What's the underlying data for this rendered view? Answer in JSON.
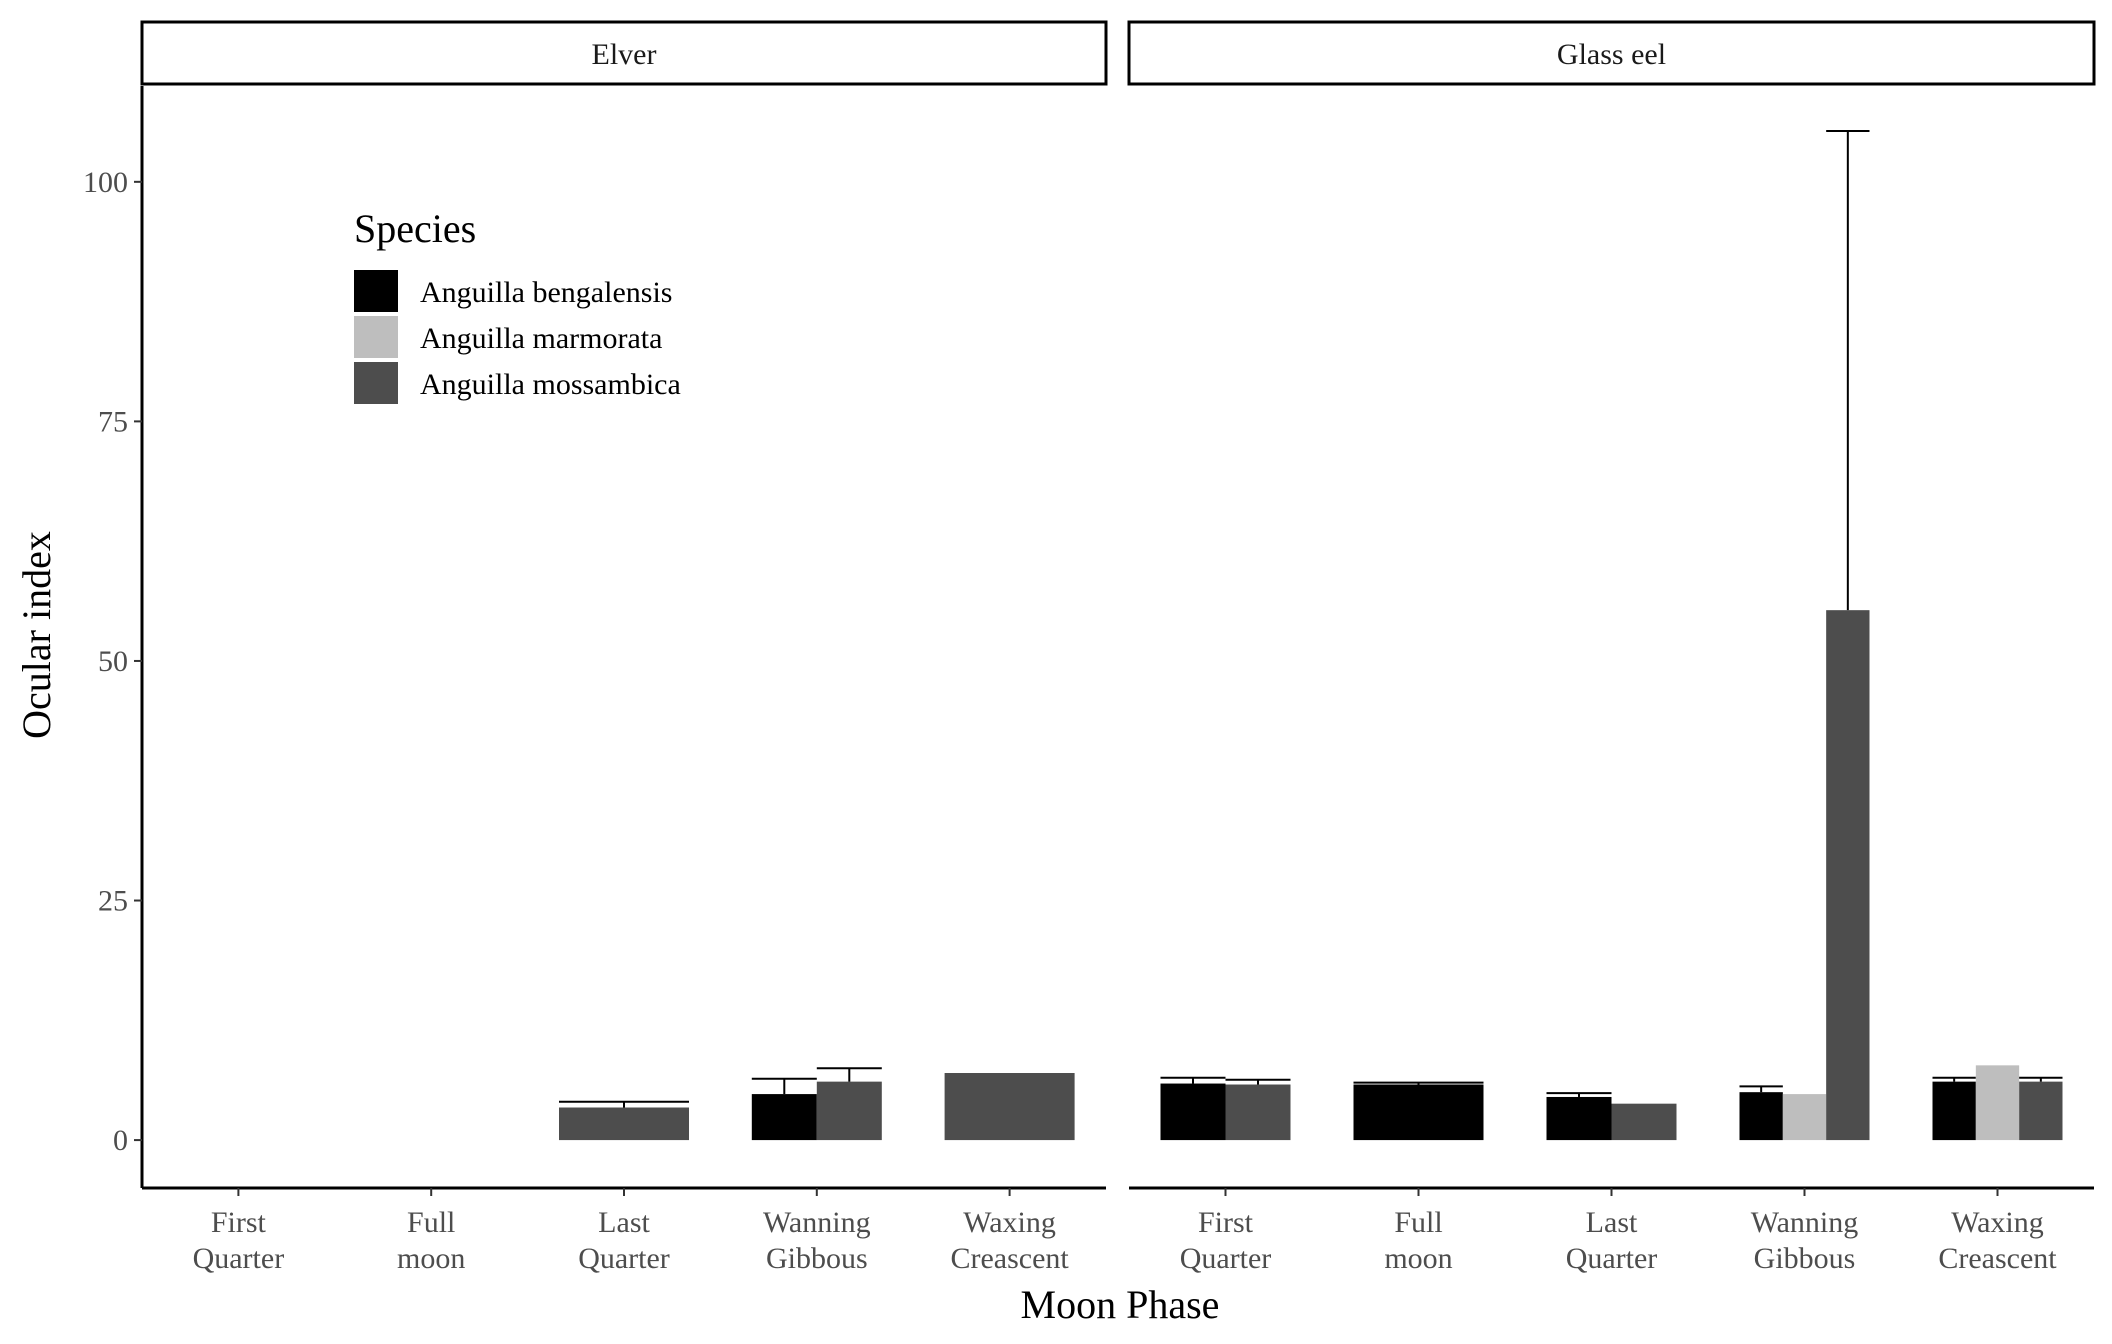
{
  "chart_data": {
    "type": "bar",
    "title": "",
    "xlabel": "Moon Phase",
    "ylabel": "Ocular index",
    "ylim": [
      -5,
      110
    ],
    "yticks": [
      0,
      25,
      50,
      75,
      100
    ],
    "categories": [
      [
        "First",
        "Quarter"
      ],
      [
        "Full",
        "moon"
      ],
      [
        "Last",
        "Quarter"
      ],
      [
        "Wanning",
        "Gibbous"
      ],
      [
        "Waxing",
        "Creascent"
      ]
    ],
    "legend": {
      "title": "Species",
      "placement": "top-left inside",
      "entries": [
        {
          "name": "Anguilla bengalensis",
          "color": "#000000"
        },
        {
          "name": "Anguilla marmorata",
          "color": "#bebebe"
        },
        {
          "name": "Anguilla mossambica",
          "color": "#4d4d4d"
        }
      ]
    },
    "facets": [
      {
        "label": "Elver",
        "groups": [
          {
            "category": 0,
            "bars": []
          },
          {
            "category": 1,
            "bars": []
          },
          {
            "category": 2,
            "bars": [
              {
                "species": 2,
                "value": 3.4,
                "err": 4.0
              }
            ]
          },
          {
            "category": 3,
            "bars": [
              {
                "species": 0,
                "value": 4.8,
                "err": 6.4
              },
              {
                "species": 2,
                "value": 6.1,
                "err": 7.5
              }
            ]
          },
          {
            "category": 4,
            "bars": [
              {
                "species": 2,
                "value": 7.0,
                "err": null
              }
            ]
          }
        ]
      },
      {
        "label": "Glass eel",
        "groups": [
          {
            "category": 0,
            "bars": [
              {
                "species": 0,
                "value": 5.9,
                "err": 6.5
              },
              {
                "species": 2,
                "value": 5.8,
                "err": 6.3
              }
            ]
          },
          {
            "category": 1,
            "bars": [
              {
                "species": 0,
                "value": 5.8,
                "err": 6.0
              }
            ]
          },
          {
            "category": 2,
            "bars": [
              {
                "species": 0,
                "value": 4.5,
                "err": 4.9
              },
              {
                "species": 2,
                "value": 3.8,
                "err": null
              }
            ]
          },
          {
            "category": 3,
            "bars": [
              {
                "species": 0,
                "value": 5.0,
                "err": 5.6
              },
              {
                "species": 1,
                "value": 4.8,
                "err": null
              },
              {
                "species": 2,
                "value": 55.3,
                "err": 105.3
              }
            ]
          },
          {
            "category": 4,
            "bars": [
              {
                "species": 0,
                "value": 6.1,
                "err": 6.5
              },
              {
                "species": 1,
                "value": 7.8,
                "err": null
              },
              {
                "species": 2,
                "value": 6.1,
                "err": 6.5
              }
            ]
          }
        ]
      }
    ]
  }
}
